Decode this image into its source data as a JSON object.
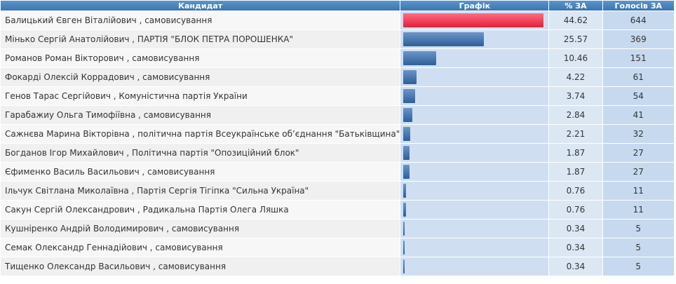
{
  "table": {
    "headers": [
      "Кандидат",
      "Графік",
      "% ЗА",
      "Голосів ЗА"
    ],
    "rows": [
      {
        "candidate": "Балицький Євген Віталійович , самовисування",
        "percent": 44.62,
        "votes": 644
      },
      {
        "candidate": "Мінько Сергій Анатолійович , ПАРТІЯ \"БЛОК ПЕТРА ПОРОШЕНКА\"",
        "percent": 25.57,
        "votes": 369
      },
      {
        "candidate": "Романов Роман Вікторович , самовисування",
        "percent": 10.46,
        "votes": 151
      },
      {
        "candidate": "Фокарді Олексій Коррадович , самовисування",
        "percent": 4.22,
        "votes": 61
      },
      {
        "candidate": "Генов Тарас Сергійович , Комуністична партія України",
        "percent": 3.74,
        "votes": 54
      },
      {
        "candidate": "Гарабажиу Ольга Тимофіївна , самовисування",
        "percent": 2.84,
        "votes": 41
      },
      {
        "candidate": "Сажнєва Марина Вікторівна , політична партія Всеукраїнське об’єднання \"Батьківщина\"",
        "percent": 2.21,
        "votes": 32
      },
      {
        "candidate": "Богданов Ігор Михайлович , Політична партія \"Опозиційний блок\"",
        "percent": 1.87,
        "votes": 27
      },
      {
        "candidate": "Єфименко Василь Васильович , самовисування",
        "percent": 1.87,
        "votes": 27
      },
      {
        "candidate": "Ільчук Світлана Миколаївна , Партія Сергія Тігіпка \"Сильна Україна\"",
        "percent": 0.76,
        "votes": 11
      },
      {
        "candidate": "Сакун Сергій Олександрович , Радикальна Партія Олега Ляшка",
        "percent": 0.76,
        "votes": 11
      },
      {
        "candidate": "Кушніренко Андрій Володимирович , самовисування",
        "percent": 0.34,
        "votes": 5
      },
      {
        "candidate": "Семак Олександр Геннадійович , самовисування",
        "percent": 0.34,
        "votes": 5
      },
      {
        "candidate": "Тищенко Олександр Васильович , самовисування",
        "percent": 0.34,
        "votes": 5
      }
    ]
  }
}
